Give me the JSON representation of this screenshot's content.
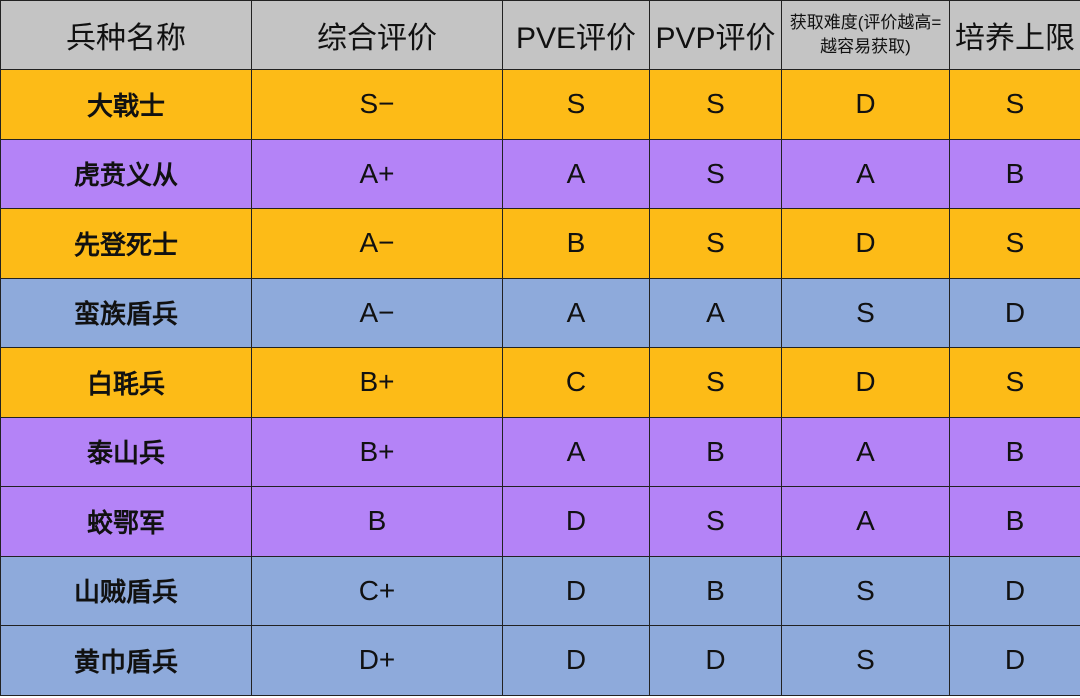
{
  "colors": {
    "header": "#c4c4c4",
    "orange": "#fdbb17",
    "purple": "#b483f7",
    "blue": "#8eaadb"
  },
  "headers": [
    "兵种名称",
    "综合评价",
    "PVE评价",
    "PVP评价",
    "获取难度(评价越高=越容易获取)",
    "培养上限"
  ],
  "rows": [
    {
      "color": "orange",
      "cells": [
        "大戟士",
        "S−",
        "S",
        "S",
        "D",
        "S"
      ]
    },
    {
      "color": "purple",
      "cells": [
        "虎贲义从",
        "A+",
        "A",
        "S",
        "A",
        "B"
      ]
    },
    {
      "color": "orange",
      "cells": [
        "先登死士",
        "A−",
        "B",
        "S",
        "D",
        "S"
      ]
    },
    {
      "color": "blue",
      "cells": [
        "蛮族盾兵",
        "A−",
        "A",
        "A",
        "S",
        "D"
      ]
    },
    {
      "color": "orange",
      "cells": [
        "白毦兵",
        "B+",
        "C",
        "S",
        "D",
        "S"
      ]
    },
    {
      "color": "purple",
      "cells": [
        "泰山兵",
        "B+",
        "A",
        "B",
        "A",
        "B"
      ]
    },
    {
      "color": "purple",
      "cells": [
        "蛟鄂军",
        "B",
        "D",
        "S",
        "A",
        "B"
      ]
    },
    {
      "color": "blue",
      "cells": [
        "山贼盾兵",
        "C+",
        "D",
        "B",
        "S",
        "D"
      ]
    },
    {
      "color": "blue",
      "cells": [
        "黄巾盾兵",
        "D+",
        "D",
        "D",
        "S",
        "D"
      ]
    }
  ]
}
